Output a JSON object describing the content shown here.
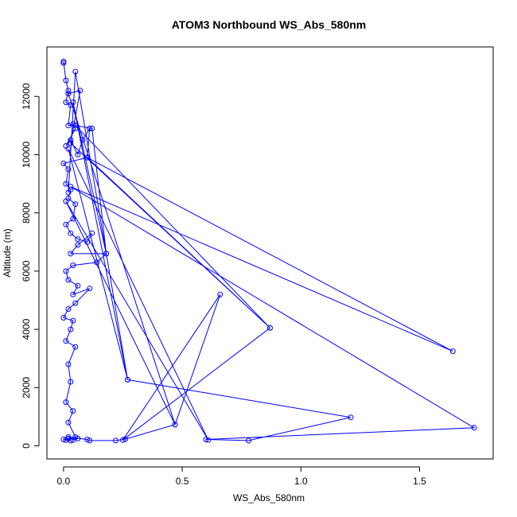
{
  "chart_data": {
    "type": "line",
    "title": "ATOM3 Northbound WS_Abs_580nm",
    "xlabel": "WS_Abs_580nm",
    "ylabel": "Altitude (m)",
    "xlim": [
      -0.07,
      1.81
    ],
    "ylim": [
      -450,
      13700
    ],
    "xticks": [
      0,
      0.5,
      1.0,
      1.5
    ],
    "xtick_labels": [
      "0.0",
      "0.5",
      "1.0",
      "1.5"
    ],
    "yticks": [
      0,
      2000,
      4000,
      6000,
      8000,
      10000,
      12000
    ],
    "ytick_labels": [
      "0",
      "2000",
      "4000",
      "6000",
      "8000",
      "10000",
      "12000"
    ],
    "grid": false,
    "marker": "open-circle",
    "series": [
      {
        "color": "#0000ff",
        "points": [
          [
            0.0,
            13150
          ],
          [
            0.0,
            13200
          ],
          [
            0.01,
            12550
          ],
          [
            0.02,
            12200
          ],
          [
            0.01,
            11800
          ],
          [
            0.03,
            11700
          ],
          [
            0.02,
            11000
          ],
          [
            0.04,
            11050
          ],
          [
            0.05,
            10900
          ],
          [
            0.01,
            10300
          ],
          [
            0.03,
            10500
          ],
          [
            0.06,
            10000
          ],
          [
            0.08,
            10500
          ],
          [
            0.11,
            10900
          ],
          [
            0.1,
            9900
          ],
          [
            0.0,
            9700
          ],
          [
            0.02,
            9500
          ],
          [
            0.01,
            9000
          ],
          [
            0.03,
            8800
          ],
          [
            0.02,
            8500
          ],
          [
            0.05,
            8300
          ],
          [
            0.04,
            7800
          ],
          [
            0.01,
            7600
          ],
          [
            0.03,
            7300
          ],
          [
            0.06,
            7100
          ],
          [
            0.1,
            7000
          ],
          [
            0.12,
            7300
          ],
          [
            0.06,
            6900
          ],
          [
            0.03,
            6600
          ],
          [
            0.18,
            6600
          ],
          [
            0.14,
            6300
          ],
          [
            0.04,
            6200
          ],
          [
            0.01,
            6000
          ],
          [
            0.02,
            5700
          ],
          [
            0.06,
            5500
          ],
          [
            0.04,
            5200
          ],
          [
            0.11,
            5400
          ],
          [
            0.05,
            4900
          ],
          [
            0.02,
            4700
          ],
          [
            0.0,
            4400
          ],
          [
            0.04,
            4300
          ],
          [
            0.03,
            4000
          ],
          [
            0.01,
            3600
          ],
          [
            0.05,
            3400
          ],
          [
            0.02,
            2800
          ],
          [
            0.03,
            2200
          ],
          [
            0.01,
            1500
          ],
          [
            0.04,
            1200
          ],
          [
            0.02,
            800
          ],
          [
            0.05,
            300
          ],
          [
            0.01,
            200
          ],
          [
            0.02,
            250
          ],
          [
            0.03,
            180
          ],
          [
            0.0,
            220
          ],
          [
            0.06,
            250
          ],
          [
            0.04,
            200
          ],
          [
            0.02,
            300
          ],
          [
            0.1,
            220
          ],
          [
            0.11,
            180
          ],
          [
            0.22,
            180
          ],
          [
            0.26,
            230
          ],
          [
            0.47,
            730
          ],
          [
            0.66,
            5200
          ],
          [
            0.25,
            200
          ],
          [
            0.87,
            4050
          ],
          [
            0.1,
            9900
          ],
          [
            1.64,
            3250
          ],
          [
            0.03,
            8900
          ],
          [
            1.73,
            620
          ],
          [
            0.6,
            220
          ],
          [
            0.78,
            180
          ],
          [
            1.21,
            980
          ],
          [
            0.27,
            2270
          ],
          [
            0.02,
            10200
          ],
          [
            0.61,
            200
          ],
          [
            0.01,
            8400
          ],
          [
            0.47,
            730
          ],
          [
            0.02,
            12100
          ],
          [
            0.07,
            12200
          ],
          [
            0.03,
            10400
          ],
          [
            0.87,
            4050
          ],
          [
            0.05,
            11000
          ],
          [
            0.12,
            10900
          ],
          [
            0.18,
            6600
          ],
          [
            0.04,
            11800
          ],
          [
            0.27,
            2270
          ],
          [
            0.05,
            12850
          ],
          [
            0.02,
            8700
          ]
        ]
      }
    ]
  }
}
